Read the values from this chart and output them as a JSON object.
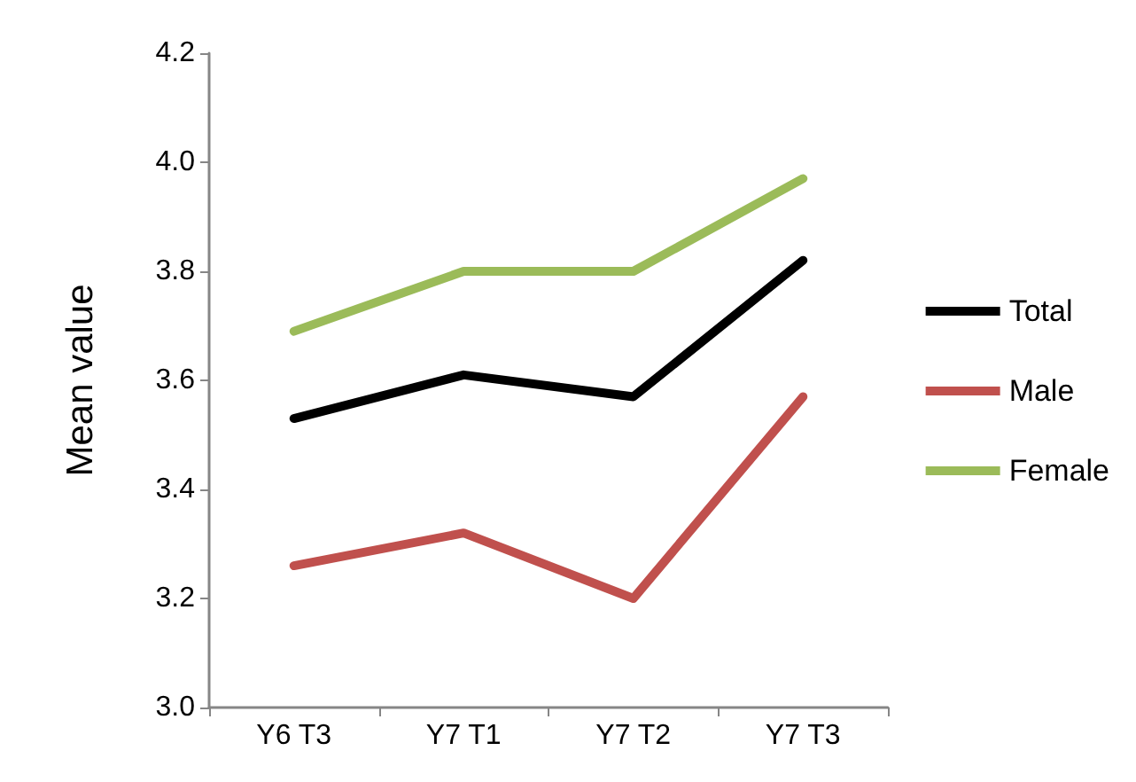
{
  "chart_data": {
    "type": "line",
    "ylabel": "Mean value",
    "categories": [
      "Y6 T3",
      "Y7 T1",
      "Y7 T2",
      "Y7 T3"
    ],
    "series": [
      {
        "name": "Total",
        "color": "#000000",
        "values": [
          3.53,
          3.61,
          3.57,
          3.82
        ]
      },
      {
        "name": "Male",
        "color": "#c0504d",
        "values": [
          3.26,
          3.32,
          3.2,
          3.57
        ]
      },
      {
        "name": "Female",
        "color": "#9bbb59",
        "values": [
          3.69,
          3.8,
          3.8,
          3.97
        ]
      }
    ],
    "ylim": [
      3.0,
      4.2
    ],
    "yticks": [
      {
        "value": 3,
        "label": "3.0"
      },
      3.2,
      3.4,
      3.6,
      3.8,
      {
        "value": 4,
        "label": "4.0"
      },
      4.2
    ],
    "grid": false,
    "legend": "right",
    "marker": "none",
    "line_style": "solid"
  }
}
